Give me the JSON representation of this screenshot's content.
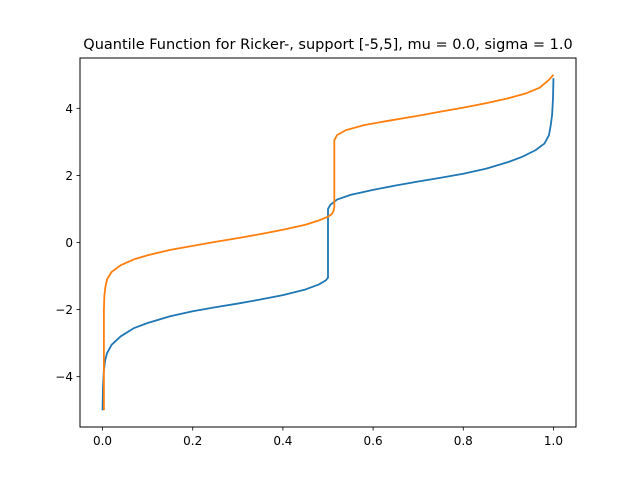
{
  "chart_data": {
    "type": "line",
    "title": "Quantile Function for Ricker-, support [-5,5], mu = 0.0, sigma = 1.0",
    "xlabel": "",
    "ylabel": "",
    "xlim": [
      -0.05,
      1.05
    ],
    "ylim": [
      -5.5,
      5.5
    ],
    "xticks": [
      0.0,
      0.2,
      0.4,
      0.6,
      0.8,
      1.0
    ],
    "xtick_labels": [
      "0.0",
      "0.2",
      "0.4",
      "0.6",
      "0.8",
      "1.0"
    ],
    "yticks": [
      -4,
      -2,
      0,
      2,
      4
    ],
    "ytick_labels": [
      "−4",
      "−2",
      "0",
      "2",
      "4"
    ],
    "grid": false,
    "legend": "none",
    "series": [
      {
        "color": "#1f77b4",
        "x": [
          0.0,
          0.001,
          0.003,
          0.006,
          0.01,
          0.02,
          0.04,
          0.07,
          0.1,
          0.15,
          0.2,
          0.25,
          0.3,
          0.35,
          0.4,
          0.45,
          0.48,
          0.495,
          0.5,
          0.5,
          0.505,
          0.52,
          0.55,
          0.6,
          0.65,
          0.7,
          0.75,
          0.8,
          0.85,
          0.9,
          0.93,
          0.96,
          0.98,
          0.99,
          0.994,
          0.997,
          0.999,
          1.0
        ],
        "y": [
          -5.0,
          -4.3,
          -3.8,
          -3.5,
          -3.3,
          -3.05,
          -2.8,
          -2.55,
          -2.4,
          -2.2,
          -2.05,
          -1.93,
          -1.82,
          -1.7,
          -1.57,
          -1.4,
          -1.25,
          -1.13,
          -1.05,
          1.0,
          1.12,
          1.28,
          1.42,
          1.57,
          1.7,
          1.82,
          1.93,
          2.05,
          2.2,
          2.4,
          2.55,
          2.75,
          2.95,
          3.2,
          3.5,
          3.8,
          4.3,
          4.9
        ]
      },
      {
        "color": "#ff7f0e",
        "x": [
          0.003,
          0.003,
          0.004,
          0.006,
          0.01,
          0.02,
          0.04,
          0.07,
          0.1,
          0.15,
          0.2,
          0.25,
          0.3,
          0.35,
          0.4,
          0.45,
          0.48,
          0.5,
          0.508,
          0.512,
          0.514,
          0.514,
          0.52,
          0.54,
          0.58,
          0.63,
          0.7,
          0.75,
          0.8,
          0.85,
          0.9,
          0.94,
          0.97,
          0.99,
          1.0
        ],
        "y": [
          -5.0,
          -2.0,
          -1.6,
          -1.35,
          -1.1,
          -0.88,
          -0.68,
          -0.5,
          -0.38,
          -0.22,
          -0.1,
          0.02,
          0.13,
          0.25,
          0.38,
          0.53,
          0.66,
          0.77,
          0.84,
          0.93,
          1.05,
          3.05,
          3.2,
          3.35,
          3.5,
          3.62,
          3.78,
          3.9,
          4.02,
          4.15,
          4.3,
          4.45,
          4.62,
          4.85,
          5.0
        ]
      }
    ]
  }
}
